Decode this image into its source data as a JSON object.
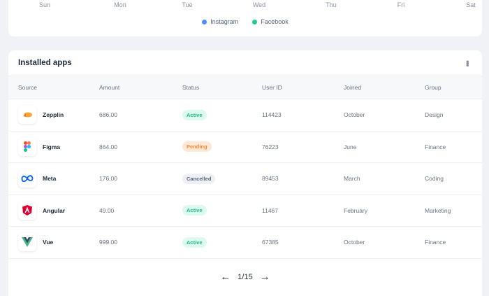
{
  "chart": {
    "days": [
      "Sun",
      "Mon",
      "Tue",
      "Wed",
      "Thu",
      "Fri",
      "Sat"
    ],
    "legend": [
      {
        "name": "Instagram",
        "color": "#4f8ef7"
      },
      {
        "name": "Facebook",
        "color": "#22c993"
      }
    ]
  },
  "apps": {
    "title": "Installed apps",
    "columns": [
      "Source",
      "Amount",
      "Status",
      "User ID",
      "Joined",
      "Group"
    ],
    "rows": [
      {
        "source": "Zepplin",
        "icon": "zeplin-icon",
        "amount": "686.00",
        "status": "Active",
        "user_id": "114423",
        "joined": "October",
        "group": "Design"
      },
      {
        "source": "Figma",
        "icon": "figma-icon",
        "amount": "864.00",
        "status": "Pending",
        "user_id": "76223",
        "joined": "June",
        "group": "Finance"
      },
      {
        "source": "Meta",
        "icon": "meta-icon",
        "amount": "176.00",
        "status": "Cancelled",
        "user_id": "89453",
        "joined": "March",
        "group": "Coding"
      },
      {
        "source": "Angular",
        "icon": "angular-icon",
        "amount": "49.00",
        "status": "Active",
        "user_id": "11467",
        "joined": "February",
        "group": "Marketing"
      },
      {
        "source": "Vue",
        "icon": "vue-icon",
        "amount": "999.00",
        "status": "Active",
        "user_id": "67385",
        "joined": "October",
        "group": "Finance"
      }
    ],
    "status_colors": {
      "Active": {
        "bg": "#dcfaef",
        "fg": "#22b983"
      },
      "Pending": {
        "bg": "#ffe8d6",
        "fg": "#f58a3c"
      },
      "Cancelled": {
        "bg": "#eef0f4",
        "fg": "#5b6275"
      }
    },
    "pagination": {
      "label": "1/15"
    }
  }
}
